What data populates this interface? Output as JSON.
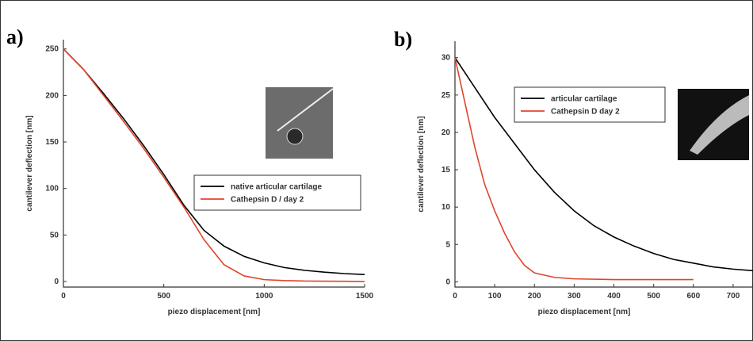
{
  "chart_data": [
    {
      "type": "line",
      "panel_label": "a)",
      "xlabel": "piezo displacement [nm]",
      "ylabel": "cantilever deflection [nm]",
      "xlim": [
        0,
        1500
      ],
      "ylim": [
        -6,
        260
      ],
      "xticks": [
        0,
        500,
        1000,
        1500
      ],
      "yticks": [
        0,
        50,
        100,
        150,
        200,
        250
      ],
      "legend": "center right",
      "series": [
        {
          "name": "native articular cartilage",
          "color": "#000000",
          "x": [
            0,
            100,
            200,
            300,
            400,
            500,
            600,
            700,
            800,
            900,
            1000,
            1100,
            1200,
            1300,
            1400,
            1500
          ],
          "values": [
            250,
            228,
            202,
            175,
            146,
            115,
            82,
            55,
            38,
            27,
            20,
            15,
            12,
            10,
            8.5,
            7.5
          ]
        },
        {
          "name": "Cathepsin D / day 2",
          "color": "#e0442c",
          "x": [
            0,
            100,
            200,
            300,
            400,
            500,
            600,
            700,
            800,
            900,
            1000,
            1100,
            1200,
            1300,
            1400,
            1500
          ],
          "values": [
            250,
            228,
            200,
            172,
            143,
            112,
            80,
            45,
            18,
            6,
            2,
            1,
            0.5,
            0.3,
            0.2,
            0
          ]
        }
      ]
    },
    {
      "type": "line",
      "panel_label": "b)",
      "xlabel": "piezo displacement [nm]",
      "ylabel": "cantilever deflection [nm]",
      "xlim": [
        0,
        750
      ],
      "ylim": [
        -0.7,
        32.2
      ],
      "xticks": [
        0,
        100,
        200,
        300,
        400,
        500,
        600,
        700
      ],
      "yticks": [
        0,
        5,
        10,
        15,
        20,
        25,
        30
      ],
      "legend": "upper center",
      "series": [
        {
          "name": "articular cartilage",
          "color": "#000000",
          "x": [
            0,
            50,
            100,
            150,
            200,
            250,
            300,
            350,
            400,
            450,
            500,
            550,
            600,
            650,
            700,
            750
          ],
          "values": [
            30,
            26,
            22,
            18.5,
            15,
            12,
            9.5,
            7.5,
            6,
            4.8,
            3.8,
            3,
            2.5,
            2,
            1.7,
            1.5
          ]
        },
        {
          "name": "Cathepsin D  day 2",
          "color": "#e0442c",
          "x": [
            0,
            25,
            50,
            75,
            100,
            125,
            150,
            175,
            200,
            250,
            300,
            400,
            500,
            600
          ],
          "values": [
            30,
            24,
            18,
            13,
            9.5,
            6.5,
            4,
            2.2,
            1.2,
            0.6,
            0.4,
            0.3,
            0.3,
            0.3
          ]
        }
      ]
    }
  ]
}
